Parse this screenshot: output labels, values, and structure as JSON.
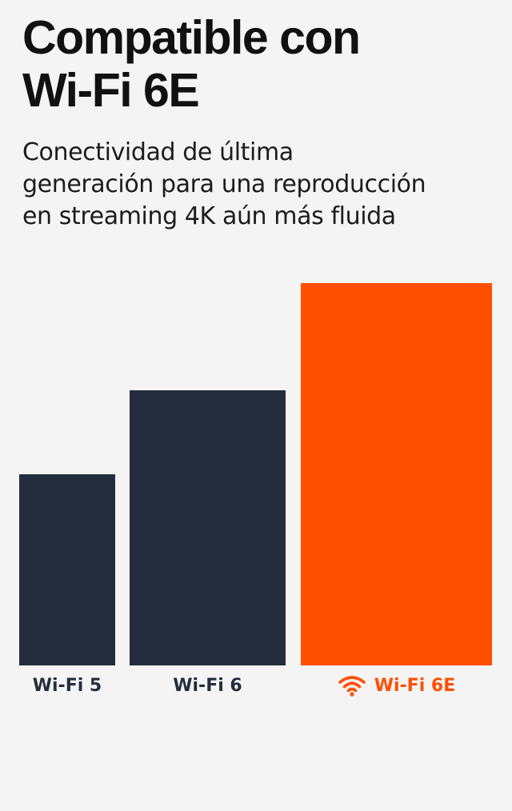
{
  "header": {
    "title_lines": [
      "Compatible con",
      "Wi-Fi 6E"
    ],
    "subtitle_lines": [
      "Conectividad de última",
      "generación para una reproducción",
      "en streaming 4K aún más fluida"
    ]
  },
  "chart_data": {
    "type": "bar",
    "title": "Compatible con Wi-Fi 6E",
    "subtitle": "Conectividad de última generación para una reproducción en streaming 4K aún más fluida",
    "categories": [
      "Wi-Fi 5",
      "Wi-Fi 6",
      "Wi-Fi 6E"
    ],
    "values": [
      0.5,
      0.72,
      1.0
    ],
    "value_scale": "relative height, tallest bar = 1 (no axis or values printed)",
    "colors": [
      "#232d3d",
      "#232d3d",
      "#ff4f00"
    ],
    "label_colors": [
      "#232d3d",
      "#232d3d",
      "#ff4f00"
    ],
    "label_icons": [
      null,
      null,
      "wifi-icon"
    ],
    "xlabel": "",
    "ylabel": "",
    "ylim": [
      0,
      1
    ],
    "grid": false,
    "legend": "none"
  }
}
